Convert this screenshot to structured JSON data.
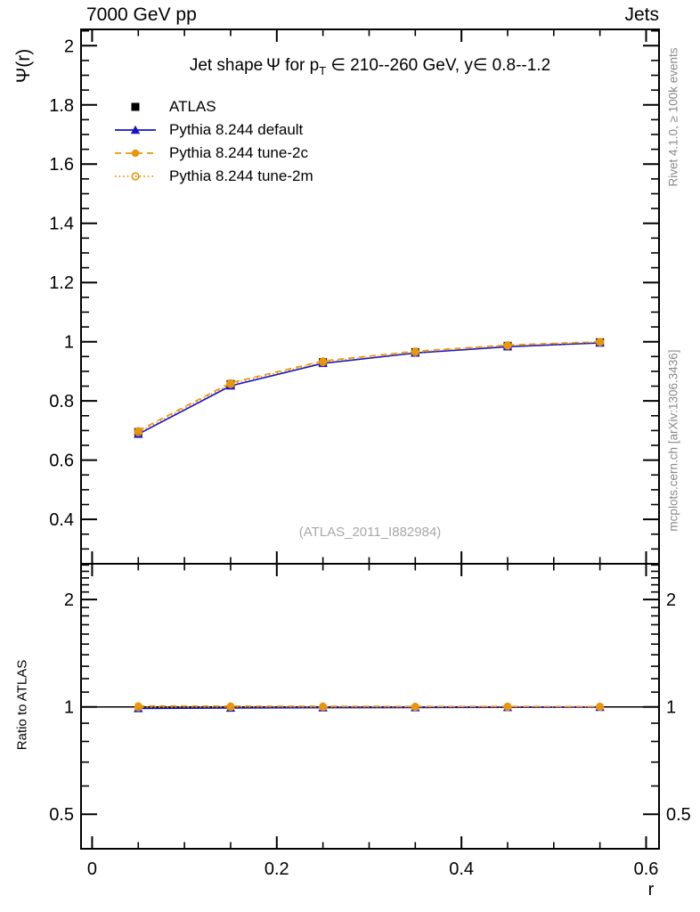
{
  "header": {
    "left": "7000 GeV pp",
    "right": "Jets"
  },
  "title": {
    "part1": "Jet shape Ψ for p",
    "sub_t": "T",
    "part2": " ∈ 210--260 GeV, y∈ 0.8--1.2"
  },
  "watermark": "(ATLAS_2011_I882984)",
  "side_notes": {
    "top": "Rivet 4.1.0, ≥ 100k events",
    "bottom": "mcplots.cern.ch [arXiv:1306.3436]"
  },
  "axes": {
    "main_ylabel": "Ψ(r)",
    "ratio_ylabel": "Ratio to ATLAS",
    "xlabel": "r"
  },
  "colors": {
    "frame": "#000000",
    "atlas": "#000000",
    "blue": "#1414cc",
    "orange": "#e8960c",
    "watermark": "#a8a8a8",
    "side_note": "#8a8a8a"
  },
  "chart_data": {
    "type": "line",
    "x": [
      0.05,
      0.15,
      0.25,
      0.35,
      0.45,
      0.55
    ],
    "xlim": [
      -0.012,
      0.614
    ],
    "xticks_major": [
      0,
      0.2,
      0.4,
      0.6
    ],
    "xticks_labels": [
      "0",
      "0.2",
      "0.4",
      "0.6"
    ],
    "xticks_minor": [
      0,
      0.05,
      0.1,
      0.15,
      0.2,
      0.25,
      0.3,
      0.35,
      0.4,
      0.45,
      0.5,
      0.55,
      0.6
    ],
    "main": {
      "yscale": "linear",
      "ylim": [
        0.25,
        2.055
      ],
      "yticks_major_values": [
        0.4,
        0.6,
        0.8,
        1.0,
        1.2,
        1.4,
        1.6,
        1.8,
        2.0
      ],
      "yticks_major_labels": [
        "0.4",
        "0.6",
        "0.8",
        "1",
        "1.2",
        "1.4",
        "1.6",
        "1.8",
        "2"
      ],
      "yticks_minor_step": 0.05,
      "grid": false,
      "legend_position": "top-left",
      "series": [
        {
          "name": "ATLAS",
          "color": "#000000",
          "line": "none",
          "marker": "square-filled",
          "values": [
            0.695,
            0.857,
            0.931,
            0.965,
            0.986,
            0.998
          ]
        },
        {
          "name": "Pythia 8.244 default",
          "color": "#1414cc",
          "line": "solid",
          "marker": "triangle-filled",
          "values": [
            0.688,
            0.851,
            0.927,
            0.962,
            0.983,
            0.996
          ]
        },
        {
          "name": "Pythia 8.244 tune-2c",
          "color": "#e8960c",
          "line": "dashed",
          "marker": "circle-filled",
          "values": [
            0.699,
            0.861,
            0.935,
            0.968,
            0.989,
            1.0
          ]
        },
        {
          "name": "Pythia 8.244 tune-2m",
          "color": "#e8960c",
          "line": "dotted",
          "marker": "circle-open",
          "values": [
            0.694,
            0.857,
            0.931,
            0.965,
            0.987,
            0.999
          ]
        }
      ]
    },
    "ratio": {
      "yscale": "log",
      "ylim": [
        0.4,
        2.52
      ],
      "reference_line": 1,
      "yticks_major_values": [
        2,
        1,
        0.5
      ],
      "yticks_major_labels": [
        "2",
        "1",
        "0.5"
      ],
      "yticks_minor": [
        2.5,
        2.4,
        2.3,
        2.2,
        2.1,
        1.9,
        1.8,
        1.7,
        1.6,
        1.5,
        1.4,
        1.3,
        1.2,
        1.1,
        0.9,
        0.8,
        0.7,
        0.6,
        0.4
      ],
      "series": [
        {
          "name": "Pythia 8.244 default",
          "color": "#1414cc",
          "line": "solid",
          "marker": "triangle-filled",
          "values": [
            0.99,
            0.993,
            0.995,
            0.996,
            0.997,
            0.998
          ]
        },
        {
          "name": "Pythia 8.244 tune-2c",
          "color": "#e8960c",
          "line": "dashed",
          "marker": "circle-filled",
          "values": [
            1.006,
            1.005,
            1.004,
            1.003,
            1.003,
            1.002
          ]
        },
        {
          "name": "Pythia 8.244 tune-2m",
          "color": "#e8960c",
          "line": "dotted",
          "marker": "circle-open",
          "values": [
            0.998,
            1.0,
            1.0,
            1.0,
            1.001,
            1.001
          ]
        }
      ]
    }
  }
}
